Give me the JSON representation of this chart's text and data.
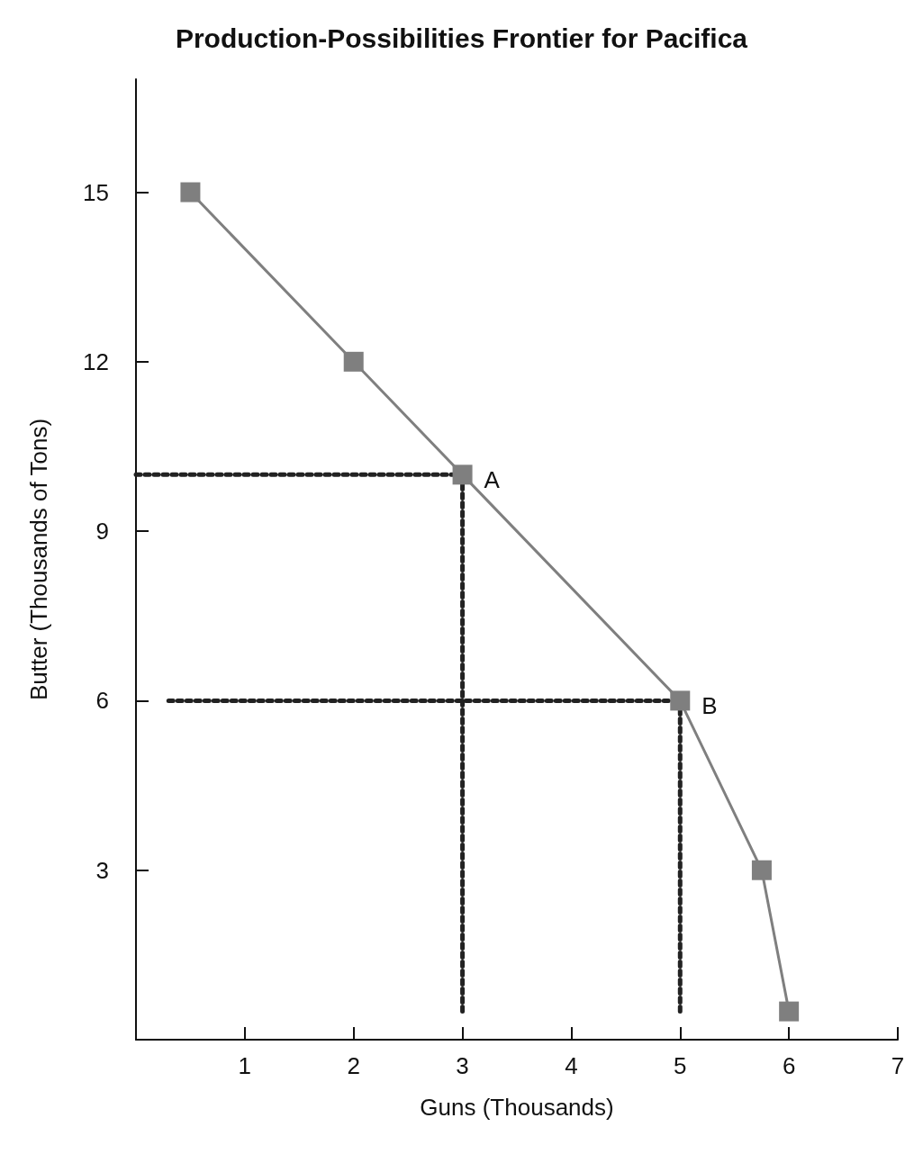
{
  "chart_data": {
    "type": "line",
    "title": "Production-Possibilities Frontier for Pacifica",
    "xlabel": "Guns (Thousands)",
    "ylabel": "Butter (Thousands of Tons)",
    "xlim": [
      0,
      7
    ],
    "xticks": [
      1,
      2,
      3,
      4,
      5,
      6,
      7
    ],
    "ylim": [
      0,
      17
    ],
    "yticks": [
      3,
      6,
      9,
      12,
      15
    ],
    "grid": false,
    "series": [
      {
        "color": "#7f7f7f",
        "marker": "square",
        "line_style": "solid",
        "x": [
          0.5,
          2,
          3,
          5,
          5.75,
          6
        ],
        "values": [
          15,
          12,
          10,
          6,
          3,
          0.5
        ]
      },
      {
        "color": "#222222",
        "marker": "none",
        "line_style": "dotted",
        "x": [
          0,
          3
        ],
        "values": [
          10,
          10
        ]
      },
      {
        "color": "#222222",
        "marker": "none",
        "line_style": "dotted",
        "x": [
          3,
          3
        ],
        "values": [
          0.5,
          10
        ]
      },
      {
        "color": "#222222",
        "marker": "none",
        "line_style": "dotted",
        "x": [
          0.3,
          5
        ],
        "values": [
          6,
          6
        ]
      },
      {
        "color": "#222222",
        "marker": "none",
        "line_style": "dotted",
        "x": [
          5,
          5
        ],
        "values": [
          0.5,
          6
        ]
      }
    ],
    "annotations": [
      {
        "text": "A",
        "x": 3,
        "y": 10
      },
      {
        "text": "B",
        "x": 5,
        "y": 6
      }
    ]
  }
}
